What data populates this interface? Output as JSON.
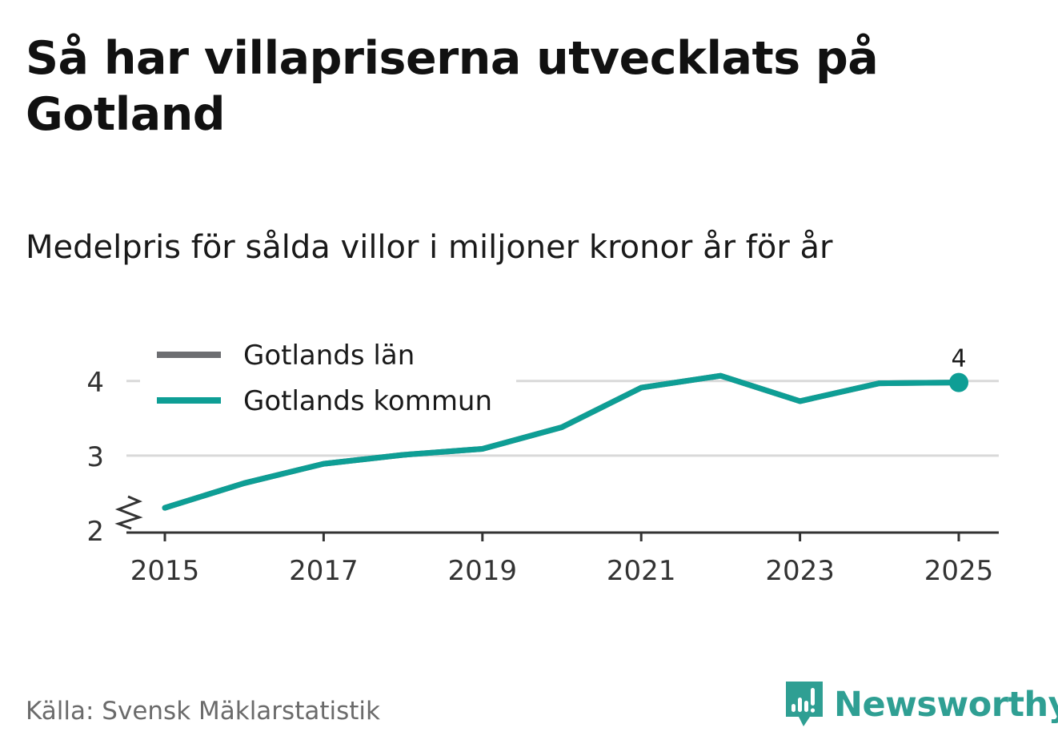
{
  "header": {
    "title": "Så har villapriserna utvecklats på Gotland",
    "subtitle": "Medelpris för sålda villor i miljoner kronor år för år"
  },
  "footer": {
    "source": "Källa: Svensk Mäklarstatistik",
    "brand": "Newsworthy"
  },
  "colors": {
    "lan": "#6d6e71",
    "kommun": "#0e9e95",
    "grid": "#d9d9d9",
    "axis": "#333333",
    "brand": "#2f9f93"
  },
  "chart_data": {
    "type": "line",
    "title": "Så har villapriserna utvecklats på Gotland",
    "subtitle": "Medelpris för sålda villor i miljoner kronor år för år",
    "xlabel": "",
    "ylabel": "",
    "x": [
      2015,
      2016,
      2017,
      2018,
      2019,
      2020,
      2021,
      2022,
      2023,
      2024,
      2025
    ],
    "xticks": [
      2015,
      2017,
      2019,
      2021,
      2023,
      2025
    ],
    "xtick_labels": [
      "2015",
      "2017",
      "2019",
      "2021",
      "2023",
      "2025"
    ],
    "ylim": [
      2,
      4.3
    ],
    "yticks": [
      2,
      3,
      4
    ],
    "ytick_labels": [
      "2",
      "3",
      "4"
    ],
    "axis_break": true,
    "grid": true,
    "legend_position": "top-left",
    "series": [
      {
        "name": "Gotlands län",
        "values": [
          2.3,
          2.63,
          2.89,
          3.01,
          3.09,
          3.38,
          3.91,
          4.07,
          3.73,
          3.97,
          3.98
        ]
      },
      {
        "name": "Gotlands kommun",
        "values": [
          2.3,
          2.63,
          2.89,
          3.01,
          3.09,
          3.38,
          3.91,
          4.07,
          3.73,
          3.97,
          3.98
        ]
      }
    ],
    "end_label": {
      "series": "Gotlands kommun",
      "x": 2025,
      "text": "4"
    }
  }
}
